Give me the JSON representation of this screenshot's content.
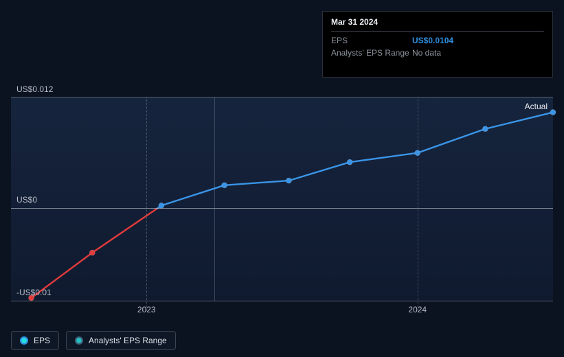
{
  "chart": {
    "type": "line",
    "background_top": "#16264a",
    "background_bottom": "#101c36",
    "page_background": "#0b1320",
    "grid_color": "#9aa3ae",
    "text_color": "#b8bec7",
    "y": {
      "min": -0.01,
      "max": 0.012,
      "zero": 0,
      "ticks": [
        {
          "v": 0.012,
          "label": "US$0.012"
        },
        {
          "v": 0,
          "label": "US$0"
        },
        {
          "v": -0.01,
          "label": "-US$0.01"
        }
      ]
    },
    "x": {
      "min": 0,
      "max": 8,
      "ticks": [
        {
          "v": 2,
          "label": "2023"
        },
        {
          "v": 6,
          "label": "2024"
        }
      ],
      "hover": 3
    },
    "actual_label": "Actual",
    "series_eps": {
      "color_pos": "#3a94e6",
      "color_neg": "#e23b3b",
      "line_width": 2.4,
      "marker_radius": 4,
      "points": [
        {
          "x": 0.3,
          "y": -0.0097
        },
        {
          "x": 1.2,
          "y": -0.0048
        },
        {
          "x": 2.22,
          "y": 0.0003
        },
        {
          "x": 3.15,
          "y": 0.0025
        },
        {
          "x": 4.1,
          "y": 0.003
        },
        {
          "x": 5.0,
          "y": 0.005
        },
        {
          "x": 6.0,
          "y": 0.006
        },
        {
          "x": 7.0,
          "y": 0.0086
        },
        {
          "x": 8.0,
          "y": 0.0104
        }
      ]
    }
  },
  "tooltip": {
    "date": "Mar 31 2024",
    "rows": [
      {
        "key": "EPS",
        "value": "US$0.0104",
        "cls": "val-eps"
      },
      {
        "key": "Analysts' EPS Range",
        "value": "No data",
        "cls": "val-nodata"
      }
    ]
  },
  "legend": {
    "eps": "EPS",
    "range": "Analysts' EPS Range"
  }
}
